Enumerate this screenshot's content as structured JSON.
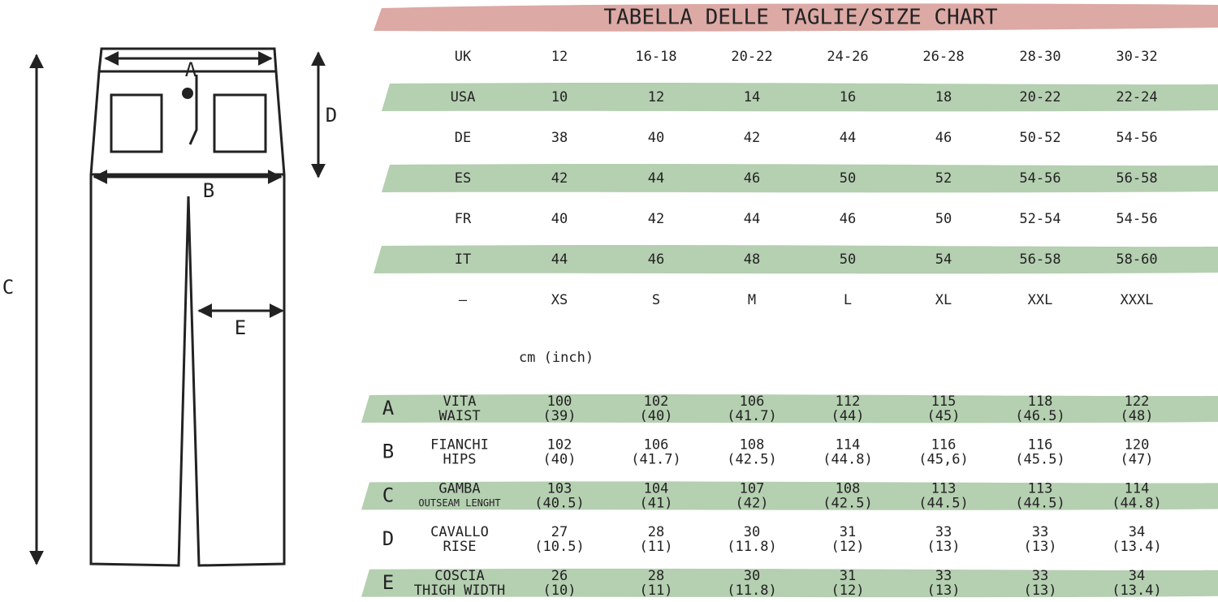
{
  "title": "TABELLA DELLE TAGLIE/SIZE CHART",
  "diagram_labels": [
    "A",
    "B",
    "C",
    "D",
    "E"
  ],
  "size_table": {
    "rows": [
      [
        "UK",
        "12",
        "16-18",
        "20-22",
        "24-26",
        "26-28",
        "28-30",
        "30-32"
      ],
      [
        "USA",
        "10",
        "12",
        "14",
        "16",
        "18",
        "20-22",
        "22-24"
      ],
      [
        "DE",
        "38",
        "40",
        "42",
        "44",
        "46",
        "50-52",
        "54-56"
      ],
      [
        "ES",
        "42",
        "44",
        "46",
        "50",
        "52",
        "54-56",
        "56-58"
      ],
      [
        "FR",
        "40",
        "42",
        "44",
        "46",
        "50",
        "52-54",
        "54-56"
      ],
      [
        "IT",
        "44",
        "46",
        "48",
        "50",
        "54",
        "56-58",
        "58-60"
      ],
      [
        "–",
        "XS",
        "S",
        "M",
        "L",
        "XL",
        "XXL",
        "XXXL"
      ]
    ]
  },
  "unit_note": "cm (inch)",
  "measure_table": {
    "rows": [
      {
        "letter": "A",
        "name": [
          "VITA",
          "WAIST"
        ],
        "values": [
          [
            "100",
            "(39)"
          ],
          [
            "102",
            "(40)"
          ],
          [
            "106",
            "(41.7)"
          ],
          [
            "112",
            "(44)"
          ],
          [
            "115",
            "(45)"
          ],
          [
            "118",
            "(46.5)"
          ],
          [
            "122",
            "(48)"
          ]
        ]
      },
      {
        "letter": "B",
        "name": [
          "FIANCHI",
          "HIPS"
        ],
        "values": [
          [
            "102",
            "(40)"
          ],
          [
            "106",
            "(41.7)"
          ],
          [
            "108",
            "(42.5)"
          ],
          [
            "114",
            "(44.8)"
          ],
          [
            "116",
            "(45,6)"
          ],
          [
            "116",
            "(45.5)"
          ],
          [
            "120",
            "(47)"
          ]
        ]
      },
      {
        "letter": "C",
        "name": [
          "GAMBA",
          "OUTSEAM LENGHT"
        ],
        "values": [
          [
            "103",
            "(40.5)"
          ],
          [
            "104",
            "(41)"
          ],
          [
            "107",
            "(42)"
          ],
          [
            "108",
            "(42.5)"
          ],
          [
            "113",
            "(44.5)"
          ],
          [
            "113",
            "(44.5)"
          ],
          [
            "114",
            "(44.8)"
          ]
        ]
      },
      {
        "letter": "D",
        "name": [
          "CAVALLO",
          "RISE"
        ],
        "values": [
          [
            "27",
            "(10.5)"
          ],
          [
            "28",
            "(11)"
          ],
          [
            "30",
            "(11.8)"
          ],
          [
            "31",
            "(12)"
          ],
          [
            "33",
            "(13)"
          ],
          [
            "33",
            "(13)"
          ],
          [
            "34",
            "(13.4)"
          ]
        ]
      },
      {
        "letter": "E",
        "name": [
          "COSCIA",
          "THIGH WIDTH"
        ],
        "values": [
          [
            "26",
            "(10)"
          ],
          [
            "28",
            "(11)"
          ],
          [
            "30",
            "(11.8)"
          ],
          [
            "31",
            "(12)"
          ],
          [
            "33",
            "(13)"
          ],
          [
            "33",
            "(13)"
          ],
          [
            "34",
            "(13.4)"
          ]
        ]
      }
    ]
  }
}
